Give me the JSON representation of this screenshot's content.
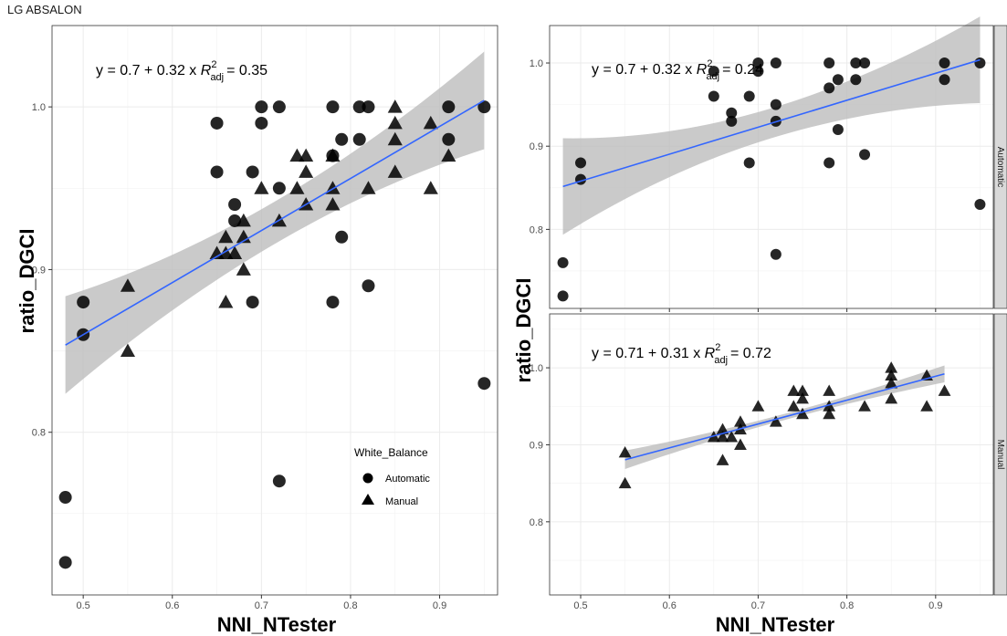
{
  "page_title": "LG ABSALON",
  "legend": {
    "title": "White_Balance",
    "items": [
      {
        "label": "Automatic",
        "shape": "circle"
      },
      {
        "label": "Manual",
        "shape": "triangle"
      }
    ]
  },
  "colors": {
    "line": "#3366FF",
    "band": "#bdbdbd",
    "point": "#000000",
    "grid": "#ebebeb",
    "strip": "#d9d9d9"
  },
  "chart_data": [
    {
      "type": "scatter",
      "panel": "left",
      "xlabel": "NNI_NTester",
      "ylabel": "ratio_DGCI",
      "x_ticks": [
        "0.5",
        "0.6",
        "0.7",
        "0.8",
        "0.9"
      ],
      "y_ticks": [
        "0.8",
        "0.9",
        "1.0"
      ],
      "xlim": [
        0.465,
        0.965
      ],
      "ylim": [
        0.7,
        1.05
      ],
      "grid": true,
      "legend_placement": "bottom-right",
      "equation": {
        "y_part": "y = 0.7 + 0.32 x",
        "r2_prefix": "R",
        "r2_sup": "2",
        "r2_sub": "adj",
        "r2_value": "= 0.35"
      },
      "fit": {
        "intercept": 0.7,
        "slope": 0.32,
        "x_range": [
          0.48,
          0.95
        ]
      },
      "band_halfwidth": [
        0.03,
        0.013,
        0.03
      ],
      "series": [
        {
          "name": "Automatic",
          "shape": "circle",
          "points": [
            [
              0.48,
              0.72
            ],
            [
              0.48,
              0.76
            ],
            [
              0.5,
              0.86
            ],
            [
              0.5,
              0.88
            ],
            [
              0.65,
              0.96
            ],
            [
              0.65,
              0.99
            ],
            [
              0.67,
              0.93
            ],
            [
              0.67,
              0.94
            ],
            [
              0.69,
              0.88
            ],
            [
              0.69,
              0.96
            ],
            [
              0.7,
              0.99
            ],
            [
              0.7,
              1.0
            ],
            [
              0.72,
              0.77
            ],
            [
              0.72,
              0.95
            ],
            [
              0.72,
              1.0
            ],
            [
              0.78,
              0.88
            ],
            [
              0.78,
              0.97
            ],
            [
              0.78,
              1.0
            ],
            [
              0.79,
              0.92
            ],
            [
              0.79,
              0.98
            ],
            [
              0.81,
              0.98
            ],
            [
              0.81,
              1.0
            ],
            [
              0.82,
              0.89
            ],
            [
              0.82,
              1.0
            ],
            [
              0.91,
              0.98
            ],
            [
              0.91,
              1.0
            ],
            [
              0.95,
              0.83
            ],
            [
              0.95,
              1.0
            ]
          ]
        },
        {
          "name": "Manual",
          "shape": "triangle",
          "points": [
            [
              0.55,
              0.85
            ],
            [
              0.55,
              0.89
            ],
            [
              0.65,
              0.91
            ],
            [
              0.66,
              0.88
            ],
            [
              0.66,
              0.91
            ],
            [
              0.66,
              0.92
            ],
            [
              0.67,
              0.91
            ],
            [
              0.68,
              0.9
            ],
            [
              0.68,
              0.92
            ],
            [
              0.68,
              0.93
            ],
            [
              0.7,
              0.95
            ],
            [
              0.72,
              0.93
            ],
            [
              0.74,
              0.95
            ],
            [
              0.74,
              0.97
            ],
            [
              0.75,
              0.94
            ],
            [
              0.75,
              0.96
            ],
            [
              0.75,
              0.97
            ],
            [
              0.78,
              0.94
            ],
            [
              0.78,
              0.95
            ],
            [
              0.78,
              0.97
            ],
            [
              0.82,
              0.95
            ],
            [
              0.85,
              0.96
            ],
            [
              0.85,
              0.98
            ],
            [
              0.85,
              0.99
            ],
            [
              0.85,
              1.0
            ],
            [
              0.89,
              0.95
            ],
            [
              0.89,
              0.99
            ],
            [
              0.91,
              0.97
            ]
          ]
        }
      ]
    },
    {
      "type": "scatter",
      "panel": "right-top",
      "facet": "Automatic",
      "xlabel": "NNI_NTester",
      "ylabel": "ratio_DGCI",
      "x_ticks": [
        "0.5",
        "0.6",
        "0.7",
        "0.8",
        "0.9"
      ],
      "y_ticks": [
        "0.8",
        "0.9",
        "1.0"
      ],
      "xlim": [
        0.465,
        0.965
      ],
      "ylim": [
        0.705,
        1.045
      ],
      "grid": true,
      "equation": {
        "y_part": "y = 0.7 + 0.32 x",
        "r2_prefix": "R",
        "r2_sup": "2",
        "r2_sub": "adj",
        "r2_value": "= 0.24"
      },
      "fit": {
        "intercept": 0.696,
        "slope": 0.324,
        "x_range": [
          0.48,
          0.95
        ]
      },
      "band_halfwidth": [
        0.058,
        0.018,
        0.052
      ],
      "series": [
        {
          "name": "Automatic",
          "shape": "circle",
          "points": [
            [
              0.48,
              0.72
            ],
            [
              0.48,
              0.76
            ],
            [
              0.5,
              0.86
            ],
            [
              0.5,
              0.88
            ],
            [
              0.65,
              0.96
            ],
            [
              0.65,
              0.99
            ],
            [
              0.67,
              0.93
            ],
            [
              0.67,
              0.94
            ],
            [
              0.69,
              0.88
            ],
            [
              0.69,
              0.96
            ],
            [
              0.7,
              0.99
            ],
            [
              0.7,
              1.0
            ],
            [
              0.72,
              0.77
            ],
            [
              0.72,
              0.93
            ],
            [
              0.72,
              0.95
            ],
            [
              0.72,
              1.0
            ],
            [
              0.78,
              0.88
            ],
            [
              0.78,
              0.97
            ],
            [
              0.78,
              1.0
            ],
            [
              0.79,
              0.92
            ],
            [
              0.79,
              0.98
            ],
            [
              0.81,
              0.98
            ],
            [
              0.81,
              1.0
            ],
            [
              0.82,
              0.89
            ],
            [
              0.82,
              1.0
            ],
            [
              0.91,
              0.98
            ],
            [
              0.91,
              1.0
            ],
            [
              0.95,
              0.83
            ],
            [
              0.95,
              1.0
            ]
          ]
        }
      ]
    },
    {
      "type": "scatter",
      "panel": "right-bottom",
      "facet": "Manual",
      "xlabel": "NNI_NTester",
      "ylabel": "ratio_DGCI",
      "x_ticks": [
        "0.5",
        "0.6",
        "0.7",
        "0.8",
        "0.9"
      ],
      "y_ticks": [
        "0.8",
        "0.9",
        "1.0"
      ],
      "xlim": [
        0.465,
        0.965
      ],
      "ylim": [
        0.705,
        1.07
      ],
      "grid": true,
      "equation": {
        "y_part": "y = 0.71 + 0.31 x",
        "r2_prefix": "R",
        "r2_sup": "2",
        "r2_sub": "adj",
        "r2_value": "= 0.72"
      },
      "fit": {
        "intercept": 0.71,
        "slope": 0.31,
        "x_range": [
          0.55,
          0.91
        ]
      },
      "band_halfwidth": [
        0.012,
        0.004,
        0.011
      ],
      "series": [
        {
          "name": "Manual",
          "shape": "triangle",
          "points": [
            [
              0.55,
              0.85
            ],
            [
              0.55,
              0.89
            ],
            [
              0.65,
              0.91
            ],
            [
              0.66,
              0.88
            ],
            [
              0.66,
              0.91
            ],
            [
              0.66,
              0.92
            ],
            [
              0.67,
              0.91
            ],
            [
              0.68,
              0.9
            ],
            [
              0.68,
              0.92
            ],
            [
              0.68,
              0.93
            ],
            [
              0.7,
              0.95
            ],
            [
              0.72,
              0.93
            ],
            [
              0.74,
              0.95
            ],
            [
              0.74,
              0.97
            ],
            [
              0.75,
              0.94
            ],
            [
              0.75,
              0.96
            ],
            [
              0.75,
              0.97
            ],
            [
              0.78,
              0.94
            ],
            [
              0.78,
              0.95
            ],
            [
              0.78,
              0.97
            ],
            [
              0.82,
              0.95
            ],
            [
              0.85,
              0.96
            ],
            [
              0.85,
              0.98
            ],
            [
              0.85,
              0.99
            ],
            [
              0.85,
              1.0
            ],
            [
              0.89,
              0.95
            ],
            [
              0.89,
              0.99
            ],
            [
              0.91,
              0.97
            ]
          ]
        }
      ]
    }
  ]
}
